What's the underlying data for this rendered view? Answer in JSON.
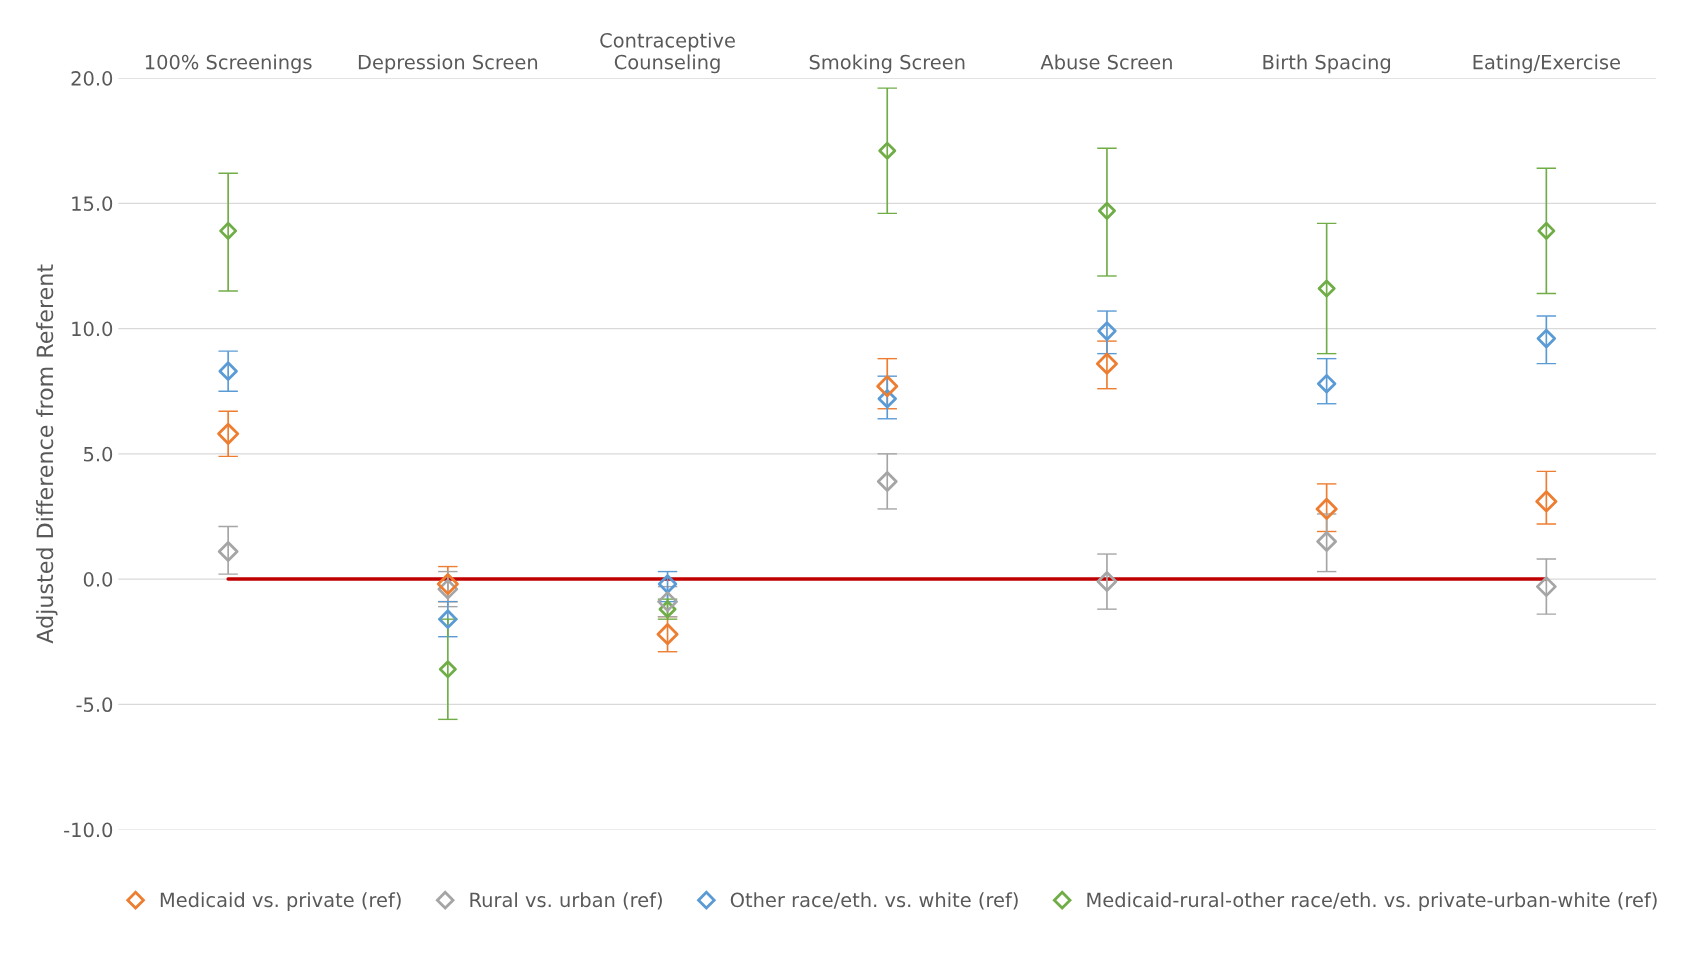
{
  "chart_data": {
    "type": "scatter",
    "ylabel": "Adjusted Difference from Referent",
    "categories": [
      "100% Screenings",
      "Depression Screen",
      "Contraceptive\nCounseling",
      "Smoking Screen",
      "Abuse Screen",
      "Birth Spacing",
      "Eating/Exercise"
    ],
    "series": [
      {
        "name": "Medicaid vs. private (ref)",
        "color": "#ed7d31",
        "values": [
          5.8,
          -0.2,
          -2.2,
          7.7,
          8.6,
          2.8,
          3.1
        ],
        "errors": [
          [
            4.9,
            6.7
          ],
          [
            -0.9,
            0.5
          ],
          [
            -2.9,
            -1.5
          ],
          [
            6.8,
            8.8
          ],
          [
            7.6,
            9.5
          ],
          [
            1.9,
            3.8
          ],
          [
            2.2,
            4.3
          ]
        ]
      },
      {
        "name": "Rural vs. urban (ref)",
        "color": "#a5a5a5",
        "values": [
          1.1,
          -0.4,
          -0.9,
          3.9,
          -0.1,
          1.5,
          -0.3
        ],
        "errors": [
          [
            0.2,
            2.1
          ],
          [
            -1.1,
            0.3
          ],
          [
            -1.5,
            -0.3
          ],
          [
            2.8,
            5.0
          ],
          [
            -1.2,
            1.0
          ],
          [
            0.3,
            2.6
          ],
          [
            -1.4,
            0.8
          ]
        ]
      },
      {
        "name": "Other race/eth. vs. white (ref)",
        "color": "#5b9bd5",
        "values": [
          8.3,
          -1.6,
          -0.2,
          7.2,
          9.9,
          7.8,
          9.6
        ],
        "errors": [
          [
            7.5,
            9.1
          ],
          [
            -2.3,
            -0.9
          ],
          [
            -0.9,
            0.3
          ],
          [
            6.4,
            8.1
          ],
          [
            9.0,
            10.7
          ],
          [
            7.0,
            8.8
          ],
          [
            8.6,
            10.5
          ]
        ]
      },
      {
        "name": "Medicaid-rural-other race/eth. vs. private-urban-white (ref)",
        "color": "#70ad47",
        "values": [
          13.9,
          -3.6,
          -1.2,
          17.1,
          14.7,
          11.6,
          13.9
        ],
        "errors": [
          [
            11.5,
            16.2
          ],
          [
            -5.6,
            -1.6
          ],
          [
            -1.6,
            -0.8
          ],
          [
            14.6,
            19.6
          ],
          [
            12.1,
            17.2
          ],
          [
            9.0,
            14.2
          ],
          [
            11.4,
            16.4
          ]
        ]
      }
    ],
    "ylim": [
      -10,
      20
    ],
    "yticks": [
      {
        "value": -10,
        "label": "-10.0"
      },
      {
        "value": -5,
        "label": "-5.0"
      },
      {
        "value": 0,
        "label": "0.0"
      },
      {
        "value": 5,
        "label": "5.0"
      },
      {
        "value": 10,
        "label": "10.0"
      },
      {
        "value": 15,
        "label": "15.0"
      },
      {
        "value": 20,
        "label": "20.0"
      }
    ],
    "ref_lines": [
      {
        "axis": "y",
        "value": 0,
        "color": "#c00000"
      }
    ],
    "grid": "y",
    "legend": "bottom",
    "marker": "diamond"
  }
}
